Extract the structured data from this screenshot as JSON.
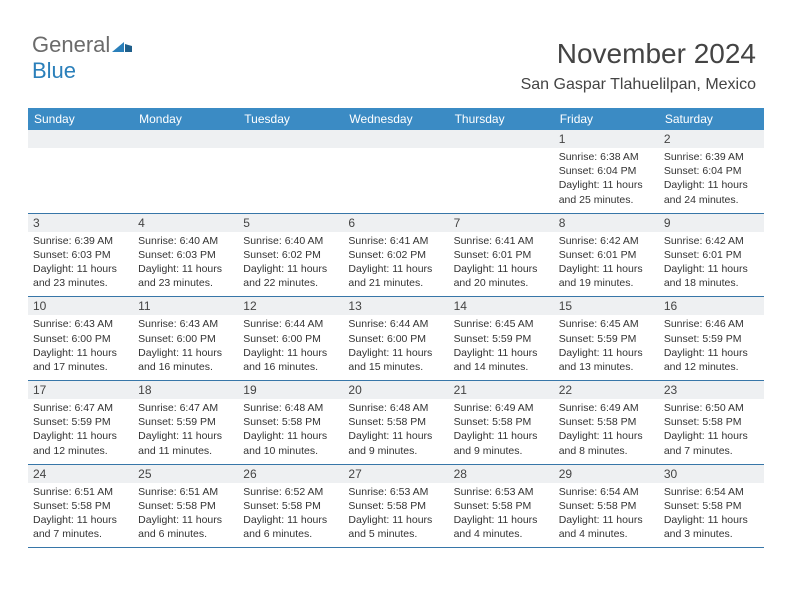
{
  "brand": {
    "line1": "General",
    "line2": "Blue"
  },
  "colors": {
    "header_bg": "#3b8bc4",
    "header_text": "#ffffff",
    "daynum_bg": "#eef0f2",
    "border": "#3776a8",
    "text": "#333333",
    "logo_gray": "#6b6b6b",
    "logo_blue": "#2a7fba"
  },
  "title": "November 2024",
  "location": "San Gaspar Tlahuelilpan, Mexico",
  "day_headers": [
    "Sunday",
    "Monday",
    "Tuesday",
    "Wednesday",
    "Thursday",
    "Friday",
    "Saturday"
  ],
  "weeks": [
    [
      null,
      null,
      null,
      null,
      null,
      {
        "n": "1",
        "sr": "6:38 AM",
        "ss": "6:04 PM",
        "dl": "11 hours and 25 minutes."
      },
      {
        "n": "2",
        "sr": "6:39 AM",
        "ss": "6:04 PM",
        "dl": "11 hours and 24 minutes."
      }
    ],
    [
      {
        "n": "3",
        "sr": "6:39 AM",
        "ss": "6:03 PM",
        "dl": "11 hours and 23 minutes."
      },
      {
        "n": "4",
        "sr": "6:40 AM",
        "ss": "6:03 PM",
        "dl": "11 hours and 23 minutes."
      },
      {
        "n": "5",
        "sr": "6:40 AM",
        "ss": "6:02 PM",
        "dl": "11 hours and 22 minutes."
      },
      {
        "n": "6",
        "sr": "6:41 AM",
        "ss": "6:02 PM",
        "dl": "11 hours and 21 minutes."
      },
      {
        "n": "7",
        "sr": "6:41 AM",
        "ss": "6:01 PM",
        "dl": "11 hours and 20 minutes."
      },
      {
        "n": "8",
        "sr": "6:42 AM",
        "ss": "6:01 PM",
        "dl": "11 hours and 19 minutes."
      },
      {
        "n": "9",
        "sr": "6:42 AM",
        "ss": "6:01 PM",
        "dl": "11 hours and 18 minutes."
      }
    ],
    [
      {
        "n": "10",
        "sr": "6:43 AM",
        "ss": "6:00 PM",
        "dl": "11 hours and 17 minutes."
      },
      {
        "n": "11",
        "sr": "6:43 AM",
        "ss": "6:00 PM",
        "dl": "11 hours and 16 minutes."
      },
      {
        "n": "12",
        "sr": "6:44 AM",
        "ss": "6:00 PM",
        "dl": "11 hours and 16 minutes."
      },
      {
        "n": "13",
        "sr": "6:44 AM",
        "ss": "6:00 PM",
        "dl": "11 hours and 15 minutes."
      },
      {
        "n": "14",
        "sr": "6:45 AM",
        "ss": "5:59 PM",
        "dl": "11 hours and 14 minutes."
      },
      {
        "n": "15",
        "sr": "6:45 AM",
        "ss": "5:59 PM",
        "dl": "11 hours and 13 minutes."
      },
      {
        "n": "16",
        "sr": "6:46 AM",
        "ss": "5:59 PM",
        "dl": "11 hours and 12 minutes."
      }
    ],
    [
      {
        "n": "17",
        "sr": "6:47 AM",
        "ss": "5:59 PM",
        "dl": "11 hours and 12 minutes."
      },
      {
        "n": "18",
        "sr": "6:47 AM",
        "ss": "5:59 PM",
        "dl": "11 hours and 11 minutes."
      },
      {
        "n": "19",
        "sr": "6:48 AM",
        "ss": "5:58 PM",
        "dl": "11 hours and 10 minutes."
      },
      {
        "n": "20",
        "sr": "6:48 AM",
        "ss": "5:58 PM",
        "dl": "11 hours and 9 minutes."
      },
      {
        "n": "21",
        "sr": "6:49 AM",
        "ss": "5:58 PM",
        "dl": "11 hours and 9 minutes."
      },
      {
        "n": "22",
        "sr": "6:49 AM",
        "ss": "5:58 PM",
        "dl": "11 hours and 8 minutes."
      },
      {
        "n": "23",
        "sr": "6:50 AM",
        "ss": "5:58 PM",
        "dl": "11 hours and 7 minutes."
      }
    ],
    [
      {
        "n": "24",
        "sr": "6:51 AM",
        "ss": "5:58 PM",
        "dl": "11 hours and 7 minutes."
      },
      {
        "n": "25",
        "sr": "6:51 AM",
        "ss": "5:58 PM",
        "dl": "11 hours and 6 minutes."
      },
      {
        "n": "26",
        "sr": "6:52 AM",
        "ss": "5:58 PM",
        "dl": "11 hours and 6 minutes."
      },
      {
        "n": "27",
        "sr": "6:53 AM",
        "ss": "5:58 PM",
        "dl": "11 hours and 5 minutes."
      },
      {
        "n": "28",
        "sr": "6:53 AM",
        "ss": "5:58 PM",
        "dl": "11 hours and 4 minutes."
      },
      {
        "n": "29",
        "sr": "6:54 AM",
        "ss": "5:58 PM",
        "dl": "11 hours and 4 minutes."
      },
      {
        "n": "30",
        "sr": "6:54 AM",
        "ss": "5:58 PM",
        "dl": "11 hours and 3 minutes."
      }
    ]
  ],
  "labels": {
    "sunrise": "Sunrise:",
    "sunset": "Sunset:",
    "daylight": "Daylight:"
  }
}
